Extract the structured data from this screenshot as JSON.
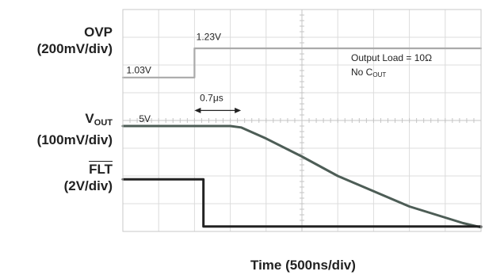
{
  "chart_data": {
    "type": "line",
    "title": "",
    "xlabel": "Time (500ns/div)",
    "xlim": [
      0,
      10
    ],
    "ylim": [
      0,
      8
    ],
    "grid": true,
    "channels": [
      {
        "name": "OVP",
        "scale": "(200mV/div)"
      },
      {
        "name": "V",
        "name_sub": "OUT",
        "scale": "(100mV/div)"
      },
      {
        "name": "FLT",
        "name_overline": true,
        "scale": "(2V/div)"
      }
    ],
    "series": [
      {
        "name": "OVP",
        "color": "#aaaaaa",
        "x": [
          0,
          2.0,
          2.0,
          10
        ],
        "y": [
          5.55,
          5.55,
          6.6,
          6.6
        ]
      },
      {
        "name": "VOUT",
        "color": "#4d5d56",
        "x": [
          0,
          3.0,
          3.3,
          4.0,
          5.0,
          6.0,
          7.0,
          8.0,
          9.0,
          9.5,
          10
        ],
        "y": [
          3.8,
          3.8,
          3.75,
          3.35,
          2.7,
          2.0,
          1.45,
          0.9,
          0.5,
          0.3,
          0.15
        ]
      },
      {
        "name": "FLT",
        "color": "#222222",
        "x": [
          0,
          2.25,
          2.25,
          10
        ],
        "y": [
          1.88,
          1.88,
          0.18,
          0.18
        ]
      }
    ],
    "annotations": [
      {
        "text": "1.03V",
        "x": 0.1,
        "y": 5.7
      },
      {
        "text": "1.23V",
        "x": 2.05,
        "y": 6.9
      },
      {
        "text": "0.7μs",
        "x": 2.15,
        "y": 4.7
      },
      {
        "text": "5V",
        "x": 0.45,
        "y": 3.95
      }
    ],
    "interval_arrow": {
      "x_start": 2.0,
      "x_end": 3.3,
      "y": 4.36,
      "label": "0.7μs"
    },
    "load_note": {
      "line1": "Output Load = 10Ω",
      "line2_main": "No C",
      "line2_sub": "OUT"
    }
  }
}
